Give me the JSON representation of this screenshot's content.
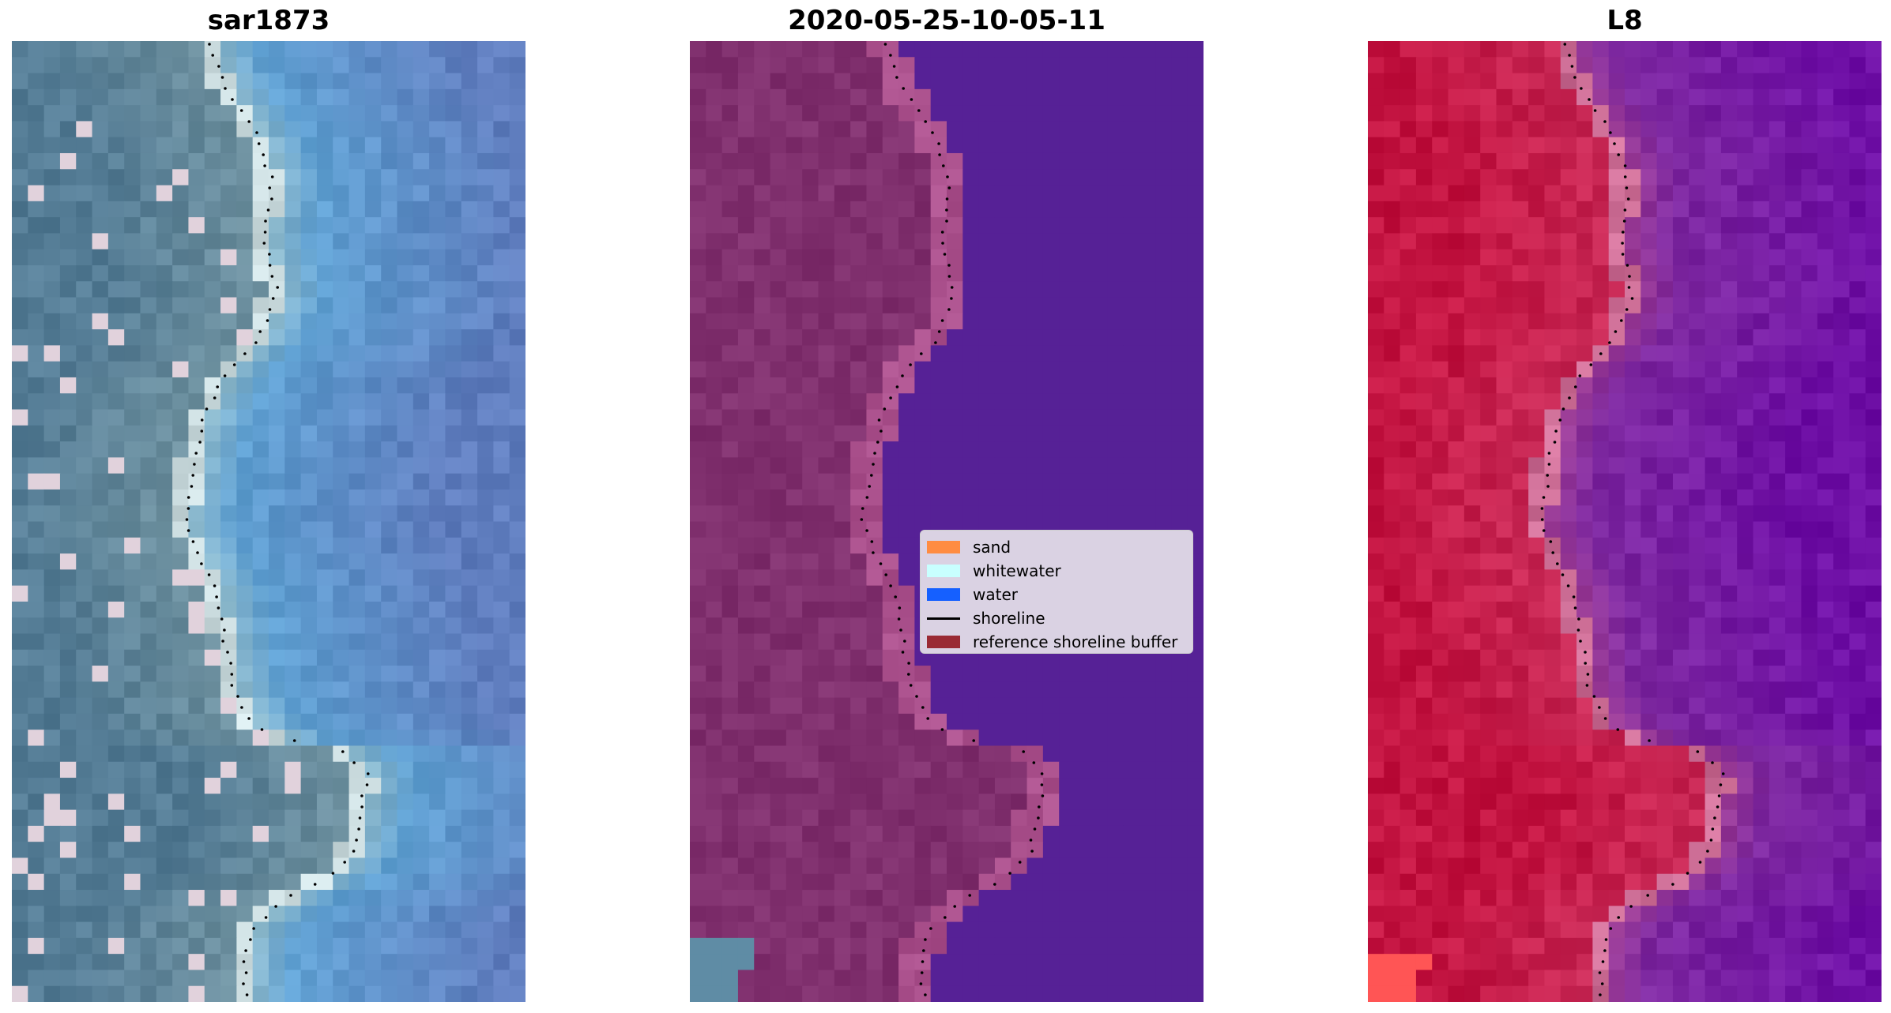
{
  "panels": [
    {
      "title": "sar1873",
      "style": "true-color"
    },
    {
      "title": "2020-05-25-10-05-11",
      "style": "classified"
    },
    {
      "title": "L8",
      "style": "false-color"
    }
  ],
  "legend": {
    "items": [
      {
        "label": "sand",
        "color": "#ff8c42",
        "kind": "patch"
      },
      {
        "label": "whitewater",
        "color": "#c8ffff",
        "kind": "patch"
      },
      {
        "label": "water",
        "color": "#1560ff",
        "kind": "patch"
      },
      {
        "label": "shoreline",
        "color": "#000000",
        "kind": "line"
      },
      {
        "label": "reference shoreline buffer",
        "color": "#9a2a34",
        "kind": "patch"
      }
    ]
  }
}
